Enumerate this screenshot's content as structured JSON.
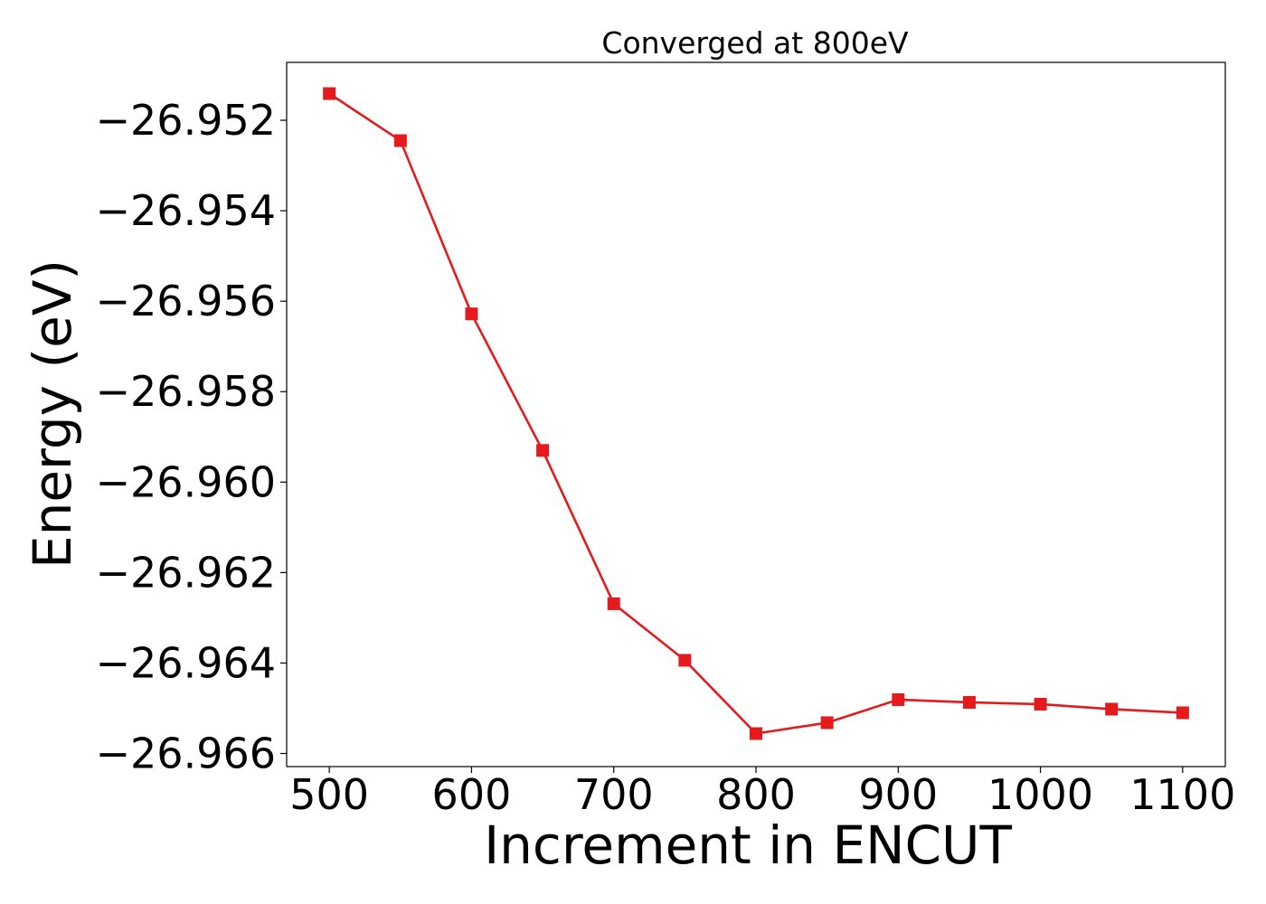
{
  "chart_data": {
    "type": "line",
    "title": "Converged at 800eV",
    "xlabel": "Increment in ENCUT",
    "ylabel": "Energy (eV)",
    "xlim": [
      470,
      1130
    ],
    "ylim": [
      -26.96629,
      -26.95072
    ],
    "x_ticks": [
      500,
      600,
      700,
      800,
      900,
      1000,
      1100
    ],
    "x_tick_labels": [
      "500",
      "600",
      "700",
      "800",
      "900",
      "1000",
      "1100"
    ],
    "y_ticks": [
      -26.952,
      -26.954,
      -26.956,
      -26.958,
      -26.96,
      -26.962,
      -26.964,
      -26.966
    ],
    "y_tick_labels": [
      "−26.952",
      "−26.954",
      "−26.956",
      "−26.958",
      "−26.960",
      "−26.962",
      "−26.964",
      "−26.966"
    ],
    "grid": false,
    "series": [
      {
        "color": "#e41a1c",
        "marker": "square",
        "x": [
          500,
          550,
          600,
          650,
          700,
          750,
          800,
          850,
          900,
          950,
          1000,
          1050,
          1100
        ],
        "y": [
          -26.95141,
          -26.95245,
          -26.95628,
          -26.9593,
          -26.96269,
          -26.96394,
          -26.96556,
          -26.96532,
          -26.96481,
          -26.96487,
          -26.96491,
          -26.96502,
          -26.9651
        ]
      }
    ]
  }
}
